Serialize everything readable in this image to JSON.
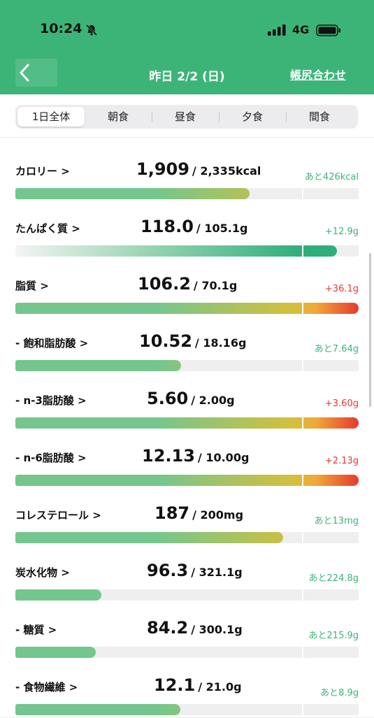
{
  "status_bar": {
    "time": "10:24",
    "network": "4G"
  },
  "nav": {
    "title": "昨日 2/2 (日)",
    "right_action": "帳尻合わせ"
  },
  "tabs": [
    {
      "label": "1日全体",
      "active": true
    },
    {
      "label": "朝食",
      "active": false
    },
    {
      "label": "昼食",
      "active": false
    },
    {
      "label": "夕食",
      "active": false
    },
    {
      "label": "間食",
      "active": false
    }
  ],
  "nutrients": [
    {
      "id": "calorie",
      "label": "カロリー >",
      "value": "1,909",
      "target": "/ 2,335kcal",
      "diff": "あと426kcal",
      "status": "under",
      "fill_fraction": 0.8175
    },
    {
      "id": "protein",
      "label": "たんぱく質 >",
      "value": "118.0",
      "target": "/ 105.1g",
      "diff": "+12.9g",
      "status": "over-good",
      "fill_fraction": 1.123
    },
    {
      "id": "fat",
      "label": "脂質 >",
      "value": "106.2",
      "target": "/ 70.1g",
      "diff": "+36.1g",
      "status": "over",
      "fill_fraction": 1.515
    },
    {
      "id": "saturated-fat",
      "label": "- 飽和脂肪酸 >",
      "value": "10.52",
      "target": "/ 18.16g",
      "diff": "あと7.64g",
      "status": "under",
      "fill_fraction": 0.579
    },
    {
      "id": "n3",
      "label": "- n-3脂肪酸 >",
      "value": "5.60",
      "target": "/ 2.00g",
      "diff": "+3.60g",
      "status": "over",
      "fill_fraction": 2.8
    },
    {
      "id": "n6",
      "label": "- n-6脂肪酸 >",
      "value": "12.13",
      "target": "/ 10.00g",
      "diff": "+2.13g",
      "status": "over",
      "fill_fraction": 1.213
    },
    {
      "id": "cholesterol",
      "label": "コレステロール >",
      "value": "187",
      "target": "/ 200mg",
      "diff": "あと13mg",
      "status": "under",
      "fill_fraction": 0.935
    },
    {
      "id": "carbohydrate",
      "label": "炭水化物 >",
      "value": "96.3",
      "target": "/ 321.1g",
      "diff": "あと224.8g",
      "status": "under",
      "fill_fraction": 0.3
    },
    {
      "id": "sugar",
      "label": "- 糖質 >",
      "value": "84.2",
      "target": "/ 300.1g",
      "diff": "あと215.9g",
      "status": "under",
      "fill_fraction": 0.281
    },
    {
      "id": "fiber",
      "label": "- 食物繊維 >",
      "value": "12.1",
      "target": "/ 21.0g",
      "diff": "あと8.9g",
      "status": "under",
      "fill_fraction": 0.576
    }
  ],
  "colors": {
    "header": "#3cb478",
    "bar_green": "#74c68e",
    "bar_yellow": "#d6bf3b",
    "bar_orange": "#f0a73a",
    "bar_red": "#e63a2c",
    "protein_teal": "#2fae7d",
    "under_text": "#3cb478",
    "over_text": "#e53935"
  }
}
